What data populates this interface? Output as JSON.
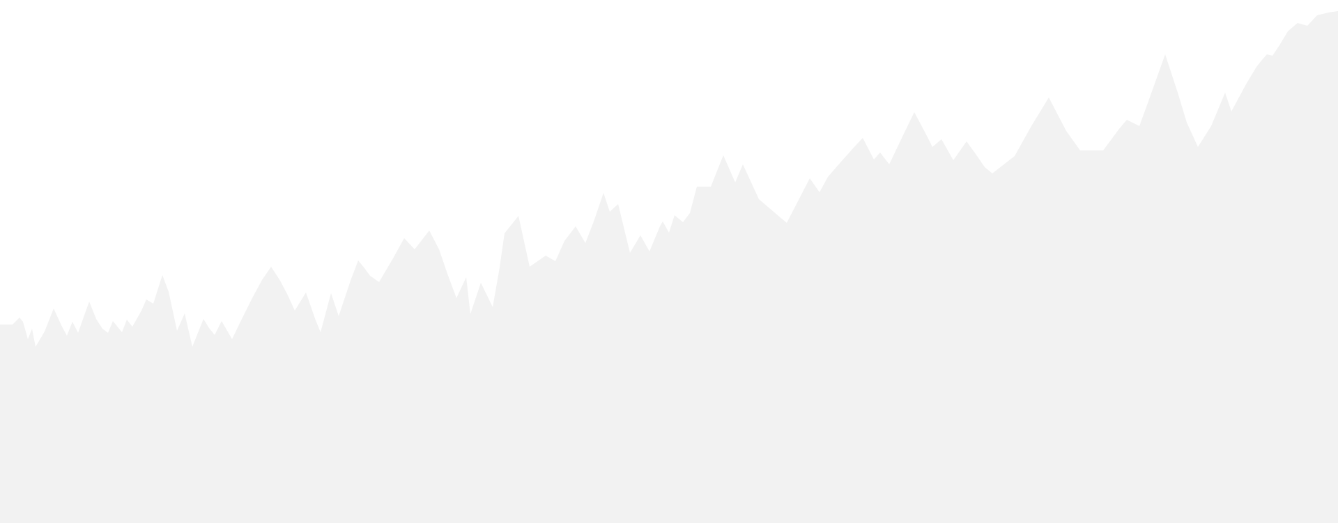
{
  "background_color": "#ffffff",
  "silhouette_color": "#f2f2f2"
}
